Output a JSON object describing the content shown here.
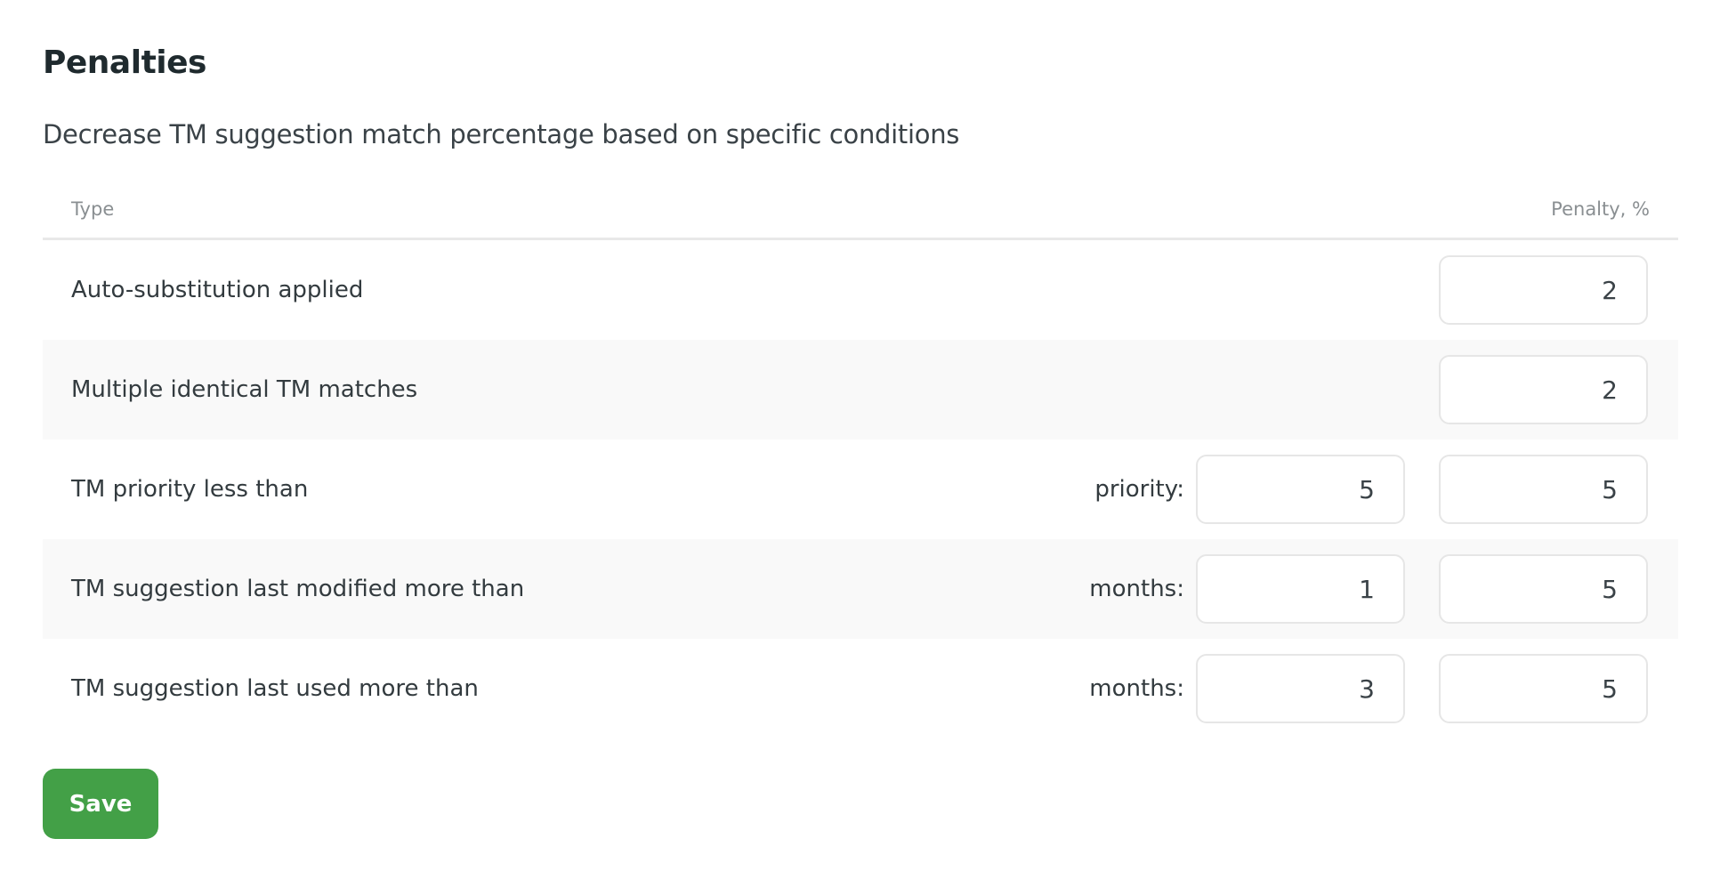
{
  "title": "Penalties",
  "subtitle": "Decrease TM suggestion match percentage based on specific conditions",
  "table": {
    "headers": {
      "type": "Type",
      "penalty": "Penalty, %"
    },
    "rows": [
      {
        "label": "Auto-substitution applied",
        "penalty": "2"
      },
      {
        "label": "Multiple identical TM matches",
        "penalty": "2"
      },
      {
        "label": "TM priority less than",
        "condition_label": "priority:",
        "condition_value": "5",
        "penalty": "5"
      },
      {
        "label": "TM suggestion last modified more than",
        "condition_label": "months:",
        "condition_value": "1",
        "penalty": "5"
      },
      {
        "label": "TM suggestion last used more than",
        "condition_label": "months:",
        "condition_value": "3",
        "penalty": "5"
      }
    ]
  },
  "save_label": "Save",
  "colors": {
    "accent": "#43a047",
    "stripe": "#f9f9f9"
  }
}
